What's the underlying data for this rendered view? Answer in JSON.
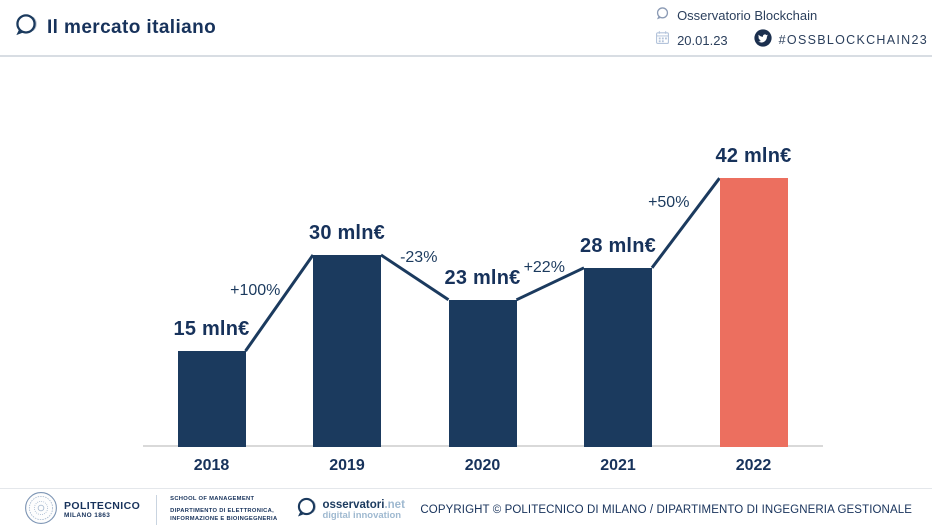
{
  "header": {
    "title": "Il mercato italiano",
    "org": "Osservatorio Blockchain",
    "date": "20.01.23",
    "hashtag": "#OSSBLOCKCHAIN23"
  },
  "chart_data": {
    "type": "bar",
    "title": "Il mercato italiano",
    "categories": [
      "2018",
      "2019",
      "2020",
      "2021",
      "2022"
    ],
    "values": [
      15,
      30,
      23,
      28,
      42
    ],
    "value_labels": [
      "15 mln€",
      "30 mln€",
      "23 mln€",
      "28 mln€",
      "42 mln€"
    ],
    "pct_changes": [
      "+100%",
      "-23%",
      "+22%",
      "+50%"
    ],
    "unit": "mln€",
    "xlabel": "",
    "ylabel": "",
    "ylim": [
      0,
      45
    ],
    "grid": false,
    "legend": false,
    "highlight_index": 4,
    "bar_color": "#1B3A5E",
    "highlight_color": "#EC6F5F",
    "line_color": "#1B3A5E"
  },
  "colors": {
    "navy": "#1B3A5E",
    "text_navy": "#17325B",
    "salmon": "#EC6F5F",
    "axis_gray": "#D9D9D9",
    "light_blue": "#9FB9D0"
  },
  "icons": {
    "header_logo": "osservatori-bubble-icon",
    "org_bubble": "speech-bubble-icon",
    "calendar": "calendar-icon",
    "twitter": "twitter-icon",
    "politecnico_seal": "politecnico-seal-icon",
    "osservatori_mark": "osservatori-bubble-icon"
  },
  "footer": {
    "politecnico_name": "POLITECNICO",
    "politecnico_sub": "MILANO 1863",
    "school": "SCHOOL OF MANAGEMENT",
    "dept_line1": "DIPARTIMENTO DI ELETTRONICA,",
    "dept_line2": "INFORMAZIONE E BIOINGEGNERIA",
    "osservatori_name": "osservatori",
    "osservatori_net": ".net",
    "osservatori_sub": "digital innovation",
    "copyright": "COPYRIGHT © POLITECNICO DI MILANO / DIPARTIMENTO DI INGEGNERIA GESTIONALE"
  }
}
